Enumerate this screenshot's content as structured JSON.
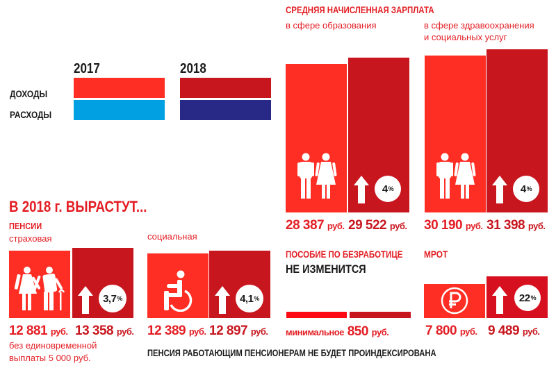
{
  "colors": {
    "income_2017": "#fe2e24",
    "income_2018": "#c8161e",
    "expense_2017": "#00a0e3",
    "expense_2018": "#282886",
    "bar_2017": "#fe2e24",
    "bar_2018": "#c8161e",
    "accent_text": "#e31e24"
  },
  "legend": {
    "year_2017": "2017",
    "year_2018": "2018",
    "income_label": "ДОХОДЫ",
    "expense_label": "РАСХОДЫ"
  },
  "salary": {
    "title": "СРЕДНЯЯ НАЧИСЛЕННАЯ ЗАРПЛАТА",
    "education": {
      "label": "в сфере образования",
      "value_2017": "28 387",
      "value_2018": "29 522",
      "growth": "4",
      "icon": "man-woman-icon"
    },
    "health": {
      "label_line1": "в сфере здравоохранения",
      "label_line2": "и социальных услуг",
      "value_2017": "30 190",
      "value_2018": "31 398",
      "growth": "4",
      "icon": "man-woman-icon"
    }
  },
  "growth_section": {
    "title": "В 2018 г. ВЫРАСТУТ...",
    "pensions_title": "ПЕНСИИ",
    "insurance": {
      "label": "страховая",
      "value_2017": "12 881",
      "value_2018": "13 358",
      "growth": "3,7",
      "note_line1": "без единовременной",
      "note_line2": "выплаты 5 000 руб.",
      "icon": "elderly-couple-icon"
    },
    "social": {
      "label": "социальная",
      "value_2017": "12 389",
      "value_2018": "12 897",
      "growth": "4,1",
      "icon": "wheelchair-icon"
    }
  },
  "unemployment": {
    "title": "ПОСОБИЕ ПО БЕЗРАБОТИЦЕ",
    "subtitle": "НЕ ИЗМЕНИТСЯ",
    "prefix": "минимальное",
    "value": "850"
  },
  "mrot": {
    "title": "МРОТ",
    "value_2017": "7 800",
    "value_2018": "9 489",
    "growth": "22",
    "icon": "ruble-icon"
  },
  "units": {
    "rub": "руб.",
    "percent": "%"
  },
  "footer": {
    "note": "ПЕНСИЯ РАБОТАЮЩИМ ПЕНСИОНЕРАМ НЕ БУДЕТ ПРОИНДЕКСИРОВАНА"
  }
}
